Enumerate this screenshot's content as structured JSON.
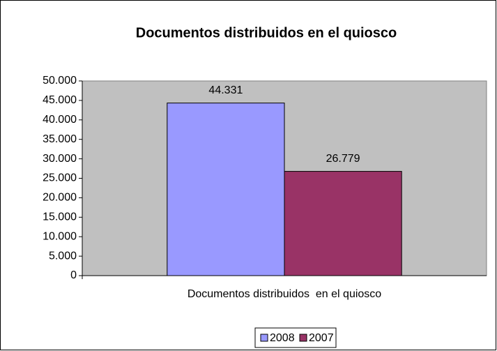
{
  "chart_data": {
    "type": "bar",
    "title": "Documentos distribuidos en el quiosco",
    "categories": [
      "Documentos distribuidos  en el quiosco"
    ],
    "series": [
      {
        "name": "2008",
        "color": "#9999ff",
        "values": [
          44331
        ],
        "value_labels": [
          "44.331"
        ]
      },
      {
        "name": "2007",
        "color": "#993366",
        "values": [
          26779
        ],
        "value_labels": [
          "26.779"
        ]
      }
    ],
    "ylim": [
      0,
      50000
    ],
    "yticks": [
      0,
      {
        "value": 5000,
        "label": "5.000"
      },
      {
        "value": 10000,
        "label": "10.000"
      },
      {
        "value": 15000,
        "label": "15.000"
      },
      {
        "value": 20000,
        "label": "20.000"
      },
      {
        "value": 25000,
        "label": "25.000"
      },
      {
        "value": 30000,
        "label": "30.000"
      },
      {
        "value": 35000,
        "label": "35.000"
      },
      {
        "value": 40000,
        "label": "40.000"
      },
      {
        "value": 45000,
        "label": "45.000"
      },
      {
        "value": 50000,
        "label": "50.000"
      }
    ],
    "grid": false,
    "legend": "bottom"
  }
}
